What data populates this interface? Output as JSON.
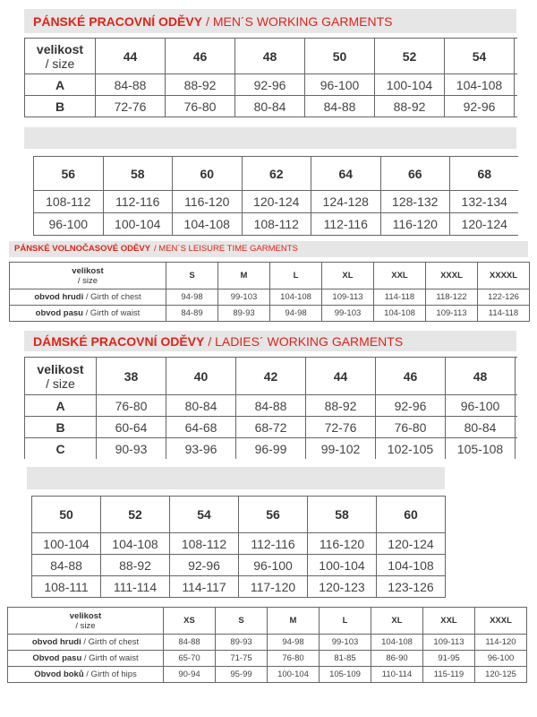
{
  "mens_working": {
    "title_cz": "PÁNSKÉ PRACOVNÍ ODĚVY",
    "title_en": "/ MEN´S WORKING GARMENTS",
    "size_label_cz": "velikost",
    "size_label_en": "/ size",
    "part1": {
      "sizes": [
        "44",
        "46",
        "48",
        "50",
        "52",
        "54"
      ],
      "rows": [
        {
          "label": "A",
          "values": [
            "84-88",
            "88-92",
            "92-96",
            "96-100",
            "100-104",
            "104-108"
          ]
        },
        {
          "label": "B",
          "values": [
            "72-76",
            "76-80",
            "80-84",
            "84-88",
            "88-92",
            "92-96"
          ]
        }
      ]
    },
    "part2": {
      "sizes": [
        "56",
        "58",
        "60",
        "62",
        "64",
        "66",
        "68"
      ],
      "rows": [
        {
          "values": [
            "108-112",
            "112-116",
            "116-120",
            "120-124",
            "124-128",
            "128-132",
            "132-134"
          ]
        },
        {
          "values": [
            "96-100",
            "100-104",
            "104-108",
            "108-112",
            "112-116",
            "116-120",
            "120-124"
          ]
        }
      ]
    }
  },
  "mens_leisure": {
    "title_cz": "PÁNSKÉ VOLNOČASOVÉ ODĚVY",
    "title_en": "/ MEN´S LEISURE TIME GARMENTS",
    "size_label_cz": "velikost",
    "size_label_en": "/ size",
    "sizes": [
      "S",
      "M",
      "L",
      "XL",
      "XXL",
      "XXXL",
      "XXXXL"
    ],
    "rows": [
      {
        "label_cz": "obvod hrudi ",
        "label_en": "/ Girth of chest",
        "values": [
          "94-98",
          "99-103",
          "104-108",
          "109-113",
          "114-118",
          "118-122",
          "122-126"
        ]
      },
      {
        "label_cz": "obvod pasu",
        "label_en": "/ Girth of waist",
        "values": [
          "84-89",
          "89-93",
          "94-98",
          "99-103",
          "104-108",
          "109-113",
          "114-118"
        ]
      }
    ]
  },
  "ladies_working": {
    "title_cz": "DÁMSKÉ PRACOVNÍ ODĚVY",
    "title_en": "/ LADIES´ WORKING GARMENTS",
    "size_label_cz": "velikost",
    "size_label_en": "/ size",
    "part1": {
      "sizes": [
        "38",
        "40",
        "42",
        "44",
        "46",
        "48"
      ],
      "rows": [
        {
          "label": "A",
          "values": [
            "76-80",
            "80-84",
            "84-88",
            "88-92",
            "92-96",
            "96-100"
          ]
        },
        {
          "label": "B",
          "values": [
            "60-64",
            "64-68",
            "68-72",
            "72-76",
            "76-80",
            "80-84"
          ]
        },
        {
          "label": "C",
          "values": [
            "90-93",
            "93-96",
            "96-99",
            "99-102",
            "102-105",
            "105-108"
          ]
        }
      ]
    },
    "part2": {
      "sizes": [
        "50",
        "52",
        "54",
        "56",
        "58",
        "60"
      ],
      "rows": [
        {
          "values": [
            "100-104",
            "104-108",
            "108-112",
            "112-116",
            "116-120",
            "120-124"
          ]
        },
        {
          "values": [
            "84-88",
            "88-92",
            "92-96",
            "96-100",
            "100-104",
            "104-108"
          ]
        },
        {
          "values": [
            "108-111",
            "111-114",
            "114-117",
            "117-120",
            "120-123",
            "123-126"
          ]
        }
      ]
    }
  },
  "ladies_leisure": {
    "size_label_cz": "velikost",
    "size_label_en": "/ size",
    "sizes": [
      "XS",
      "S",
      "M",
      "L",
      "XL",
      "XXL",
      "XXXL"
    ],
    "rows": [
      {
        "label_cz": "obvod hrudi",
        "label_en": "/ Girth of chest",
        "values": [
          "84-88",
          "89-93",
          "94-98",
          "99-103",
          "104-108",
          "109-113",
          "114-120"
        ]
      },
      {
        "label_cz": "Obvod pasu",
        "label_en": "/ Girth of waist",
        "values": [
          "65-70",
          "71-75",
          "76-80",
          "81-85",
          "86-90",
          "91-95",
          "96-100"
        ]
      },
      {
        "label_cz": "Obvod boků",
        "label_en": "/ Girth of hips",
        "values": [
          "90-94",
          "95-99",
          "100-104",
          "105-109",
          "110-114",
          "115-119",
          "120-125"
        ]
      }
    ]
  },
  "colors": {
    "accent": "#e2231a",
    "bar": "#e6e6e6",
    "border": "#666666"
  }
}
